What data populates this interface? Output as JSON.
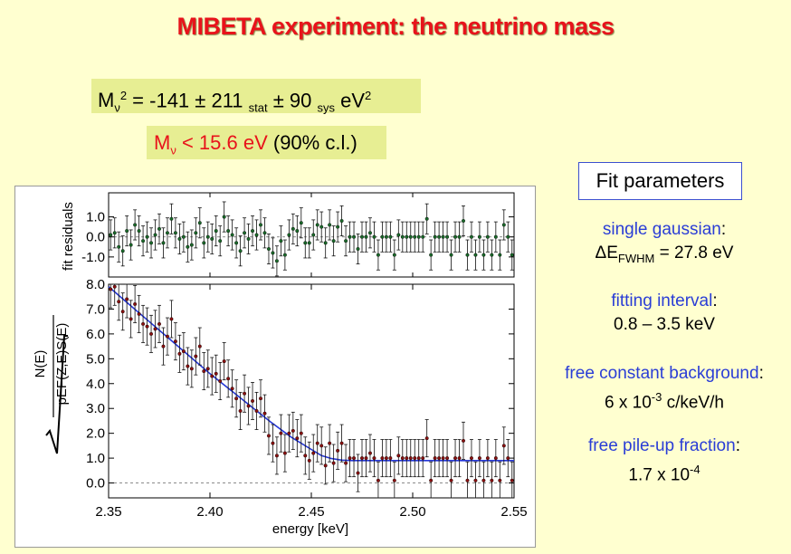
{
  "title": "MIBETA experiment: the neutrino mass",
  "result": {
    "m2_M": "M",
    "m2_nu": "ν",
    "m2_sq": "2",
    "m2_eq": " = -141 ± 211 ",
    "m2_stat": "stat",
    "m2_mid": " ± 90 ",
    "m2_sys": "sys",
    "m2_unit": " eV",
    "m2_sq2": "2",
    "lim_M": "M",
    "lim_nu": "ν",
    "lim_val": " < 15.6 eV",
    "lim_cl": " (90% c.l.)"
  },
  "fit_parameters": {
    "heading": "Fit parameters",
    "p1_label": "single gaussian",
    "p1_colon": ":",
    "p1_a": "ΔE",
    "p1_sub": "FWHM",
    "p1_b": " = 27.8 eV",
    "p2_label": "fitting interval",
    "p2_colon": ":",
    "p2_value": "0.8 – 3.5 keV",
    "p3_label": "free constant background",
    "p3_colon": ":",
    "p3_a": "6 x 10",
    "p3_sup": "-3",
    "p3_b": " c/keV/h",
    "p4_label": "free pile-up fraction",
    "p4_colon": ":",
    "p4_a": "1.7 x 10",
    "p4_sup": "-4"
  },
  "colors": {
    "title": "#e8131b",
    "fit_curve": "#2436d6",
    "points": "#8b1010",
    "residual_points": "#1a6a2a",
    "text_blue": "#2a3dd6"
  },
  "chart_data": [
    {
      "type": "scatter",
      "panel": "residuals",
      "ylabel": "fit residuals",
      "xlim": [
        2.35,
        2.55
      ],
      "ylim": [
        -2.0,
        2.2
      ],
      "yticks": [
        "1.0",
        "0.0",
        "-1.0"
      ],
      "yticks_values": [
        1.0,
        0.0,
        -1.0
      ],
      "x": [
        2.351,
        2.353,
        2.355,
        2.357,
        2.359,
        2.361,
        2.363,
        2.365,
        2.367,
        2.369,
        2.371,
        2.373,
        2.375,
        2.377,
        2.379,
        2.381,
        2.383,
        2.385,
        2.387,
        2.389,
        2.391,
        2.393,
        2.395,
        2.397,
        2.399,
        2.401,
        2.403,
        2.405,
        2.407,
        2.409,
        2.411,
        2.413,
        2.415,
        2.417,
        2.419,
        2.421,
        2.423,
        2.425,
        2.427,
        2.429,
        2.431,
        2.433,
        2.435,
        2.437,
        2.439,
        2.441,
        2.443,
        2.445,
        2.447,
        2.449,
        2.451,
        2.453,
        2.455,
        2.457,
        2.459,
        2.461,
        2.463,
        2.465,
        2.467,
        2.469,
        2.471,
        2.473,
        2.475,
        2.477,
        2.479,
        2.481,
        2.483,
        2.485,
        2.487,
        2.489,
        2.491,
        2.493,
        2.495,
        2.497,
        2.499,
        2.501,
        2.503,
        2.505,
        2.507,
        2.509,
        2.511,
        2.513,
        2.515,
        2.517,
        2.519,
        2.521,
        2.523,
        2.525,
        2.527,
        2.529,
        2.531,
        2.533,
        2.535,
        2.537,
        2.539,
        2.541,
        2.543,
        2.545,
        2.547,
        2.549
      ],
      "y": [
        0.1,
        0.2,
        -0.5,
        -0.7,
        0.3,
        -0.4,
        0.6,
        0.3,
        -0.2,
        0.0,
        -0.3,
        0.1,
        0.4,
        -0.3,
        0.2,
        0.9,
        0.2,
        -0.1,
        0.0,
        -0.5,
        -0.4,
        0.2,
        0.7,
        -0.3,
        0.0,
        -0.1,
        0.3,
        -0.2,
        1.0,
        0.3,
        0.1,
        -0.3,
        -0.7,
        0.2,
        -0.1,
        0.3,
        0.1,
        0.6,
        0.2,
        -0.6,
        -0.8,
        -1.2,
        -0.2,
        -0.9,
        0.1,
        0.4,
        0.3,
        0.7,
        -0.3,
        -0.3,
        0.1,
        0.6,
        0.5,
        -0.3,
        0.6,
        -0.2,
        0.5,
        0.8,
        -0.2,
        0.0,
        0.0,
        -0.6,
        0.0,
        0.0,
        0.2,
        0.0,
        -0.9,
        0.0,
        0.0,
        0.0,
        -0.9,
        0.1,
        0.0,
        0.0,
        0.0,
        0.0,
        0.0,
        0.0,
        0.9,
        -0.9,
        0.0,
        0.0,
        0.0,
        0.0,
        -0.9,
        0.0,
        0.0,
        0.8,
        -0.9,
        0.0,
        -0.9,
        0.0,
        -0.9,
        0.0,
        -0.9,
        0.0,
        -0.9,
        0.6,
        0.0,
        -0.9
      ],
      "yerr": 0.75
    },
    {
      "type": "scatter",
      "panel": "spectrum",
      "xlabel": "energy [keV]",
      "ylabel": "√ N(E) / pEF(Z,E)S(E)",
      "ylabel_num": "N(E)",
      "ylabel_den": "pEF(Z,E)S(E)",
      "xlim": [
        2.35,
        2.55
      ],
      "ylim": [
        -0.6,
        8.0
      ],
      "xticks": [
        "2.35",
        "2.40",
        "2.45",
        "2.50",
        "2.55"
      ],
      "xticks_values": [
        2.35,
        2.4,
        2.45,
        2.5,
        2.55
      ],
      "yticks": [
        "8.0",
        "7.0",
        "6.0",
        "5.0",
        "4.0",
        "3.0",
        "2.0",
        "1.0",
        "0.0"
      ],
      "yticks_values": [
        8.0,
        7.0,
        6.0,
        5.0,
        4.0,
        3.0,
        2.0,
        1.0,
        0.0
      ],
      "x": [
        2.351,
        2.353,
        2.355,
        2.357,
        2.359,
        2.361,
        2.363,
        2.365,
        2.367,
        2.369,
        2.371,
        2.373,
        2.375,
        2.377,
        2.379,
        2.381,
        2.383,
        2.385,
        2.387,
        2.389,
        2.391,
        2.393,
        2.395,
        2.397,
        2.399,
        2.401,
        2.403,
        2.405,
        2.407,
        2.409,
        2.411,
        2.413,
        2.415,
        2.417,
        2.419,
        2.421,
        2.423,
        2.425,
        2.427,
        2.429,
        2.431,
        2.433,
        2.435,
        2.437,
        2.439,
        2.441,
        2.443,
        2.445,
        2.447,
        2.449,
        2.451,
        2.453,
        2.455,
        2.457,
        2.459,
        2.461,
        2.463,
        2.465,
        2.467,
        2.469,
        2.471,
        2.473,
        2.475,
        2.477,
        2.479,
        2.481,
        2.483,
        2.485,
        2.487,
        2.489,
        2.491,
        2.493,
        2.495,
        2.497,
        2.499,
        2.501,
        2.503,
        2.505,
        2.507,
        2.509,
        2.511,
        2.513,
        2.515,
        2.517,
        2.519,
        2.521,
        2.523,
        2.525,
        2.527,
        2.529,
        2.531,
        2.533,
        2.535,
        2.537,
        2.539,
        2.541,
        2.543,
        2.545,
        2.547,
        2.549
      ],
      "y": [
        7.8,
        7.9,
        7.3,
        6.9,
        7.4,
        6.6,
        7.2,
        6.8,
        6.4,
        6.3,
        6.0,
        6.2,
        6.4,
        5.5,
        5.9,
        6.6,
        5.7,
        5.2,
        5.3,
        4.7,
        4.6,
        5.1,
        5.5,
        4.5,
        4.6,
        4.3,
        4.4,
        4.1,
        4.9,
        4.2,
        3.8,
        3.4,
        2.9,
        3.6,
        3.1,
        3.3,
        2.9,
        3.4,
        2.8,
        1.9,
        1.6,
        1.1,
        2.0,
        1.2,
        2.0,
        2.1,
        1.8,
        2.0,
        1.1,
        0.9,
        1.2,
        1.6,
        1.5,
        0.7,
        1.6,
        0.8,
        1.3,
        1.6,
        0.8,
        1.0,
        1.0,
        0.4,
        1.0,
        1.0,
        1.2,
        1.0,
        0.1,
        1.0,
        1.0,
        1.0,
        0.1,
        1.1,
        1.0,
        1.0,
        1.0,
        1.0,
        1.0,
        1.0,
        1.8,
        0.1,
        1.0,
        1.0,
        1.0,
        1.0,
        0.1,
        1.0,
        1.0,
        1.7,
        0.1,
        1.0,
        0.1,
        1.0,
        0.1,
        1.0,
        0.1,
        1.0,
        0.1,
        1.5,
        1.0,
        0.1
      ],
      "yerr": 0.75,
      "fit_x": [
        2.35,
        2.36,
        2.37,
        2.38,
        2.39,
        2.4,
        2.41,
        2.42,
        2.43,
        2.44,
        2.45,
        2.455,
        2.46,
        2.465,
        2.47,
        2.48,
        2.5,
        2.55
      ],
      "fit_y": [
        7.9,
        7.2,
        6.5,
        5.8,
        5.1,
        4.4,
        3.75,
        3.1,
        2.45,
        1.85,
        1.35,
        1.1,
        0.98,
        0.92,
        0.9,
        0.9,
        0.9,
        0.9
      ]
    }
  ]
}
